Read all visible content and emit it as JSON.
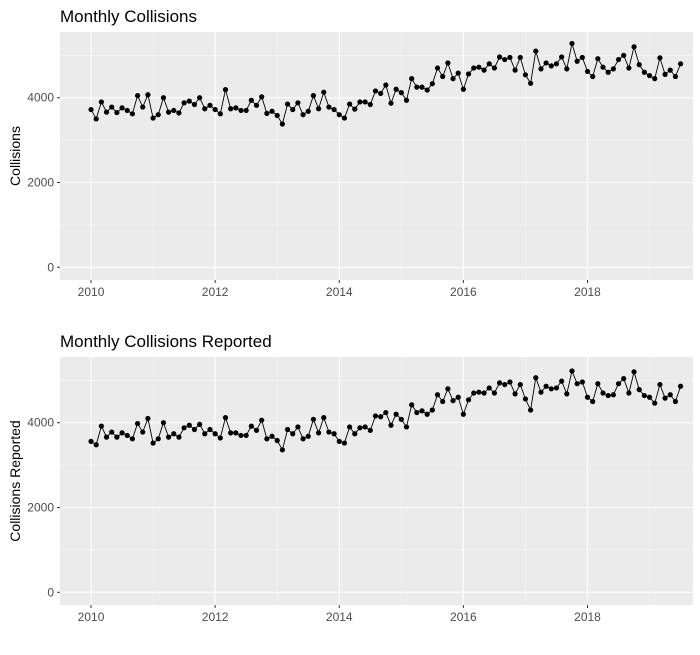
{
  "chart_data": [
    {
      "type": "line",
      "title": "Monthly Collisions",
      "xlabel": "",
      "ylabel": "Collisions",
      "xlim": [
        2009.5,
        2019.7
      ],
      "ylim": [
        -300,
        5550
      ],
      "x_ticks": [
        2010,
        2012,
        2014,
        2016,
        2018
      ],
      "x_tick_labels": [
        "2010",
        "2012",
        "2014",
        "2016",
        "2018"
      ],
      "y_ticks": [
        0,
        2000,
        4000
      ],
      "y_tick_labels": [
        "0",
        "2000",
        "4000"
      ],
      "grid": true,
      "legend": "none",
      "x_start": 2010,
      "x_step": 0.0833333,
      "series": [
        {
          "marker": "point",
          "values": [
            3720,
            3500,
            3900,
            3660,
            3780,
            3650,
            3760,
            3700,
            3620,
            4050,
            3780,
            4070,
            3520,
            3600,
            4000,
            3660,
            3700,
            3640,
            3880,
            3920,
            3840,
            4000,
            3740,
            3820,
            3720,
            3620,
            4190,
            3740,
            3760,
            3700,
            3700,
            3940,
            3820,
            4020,
            3630,
            3680,
            3580,
            3380,
            3850,
            3720,
            3880,
            3600,
            3680,
            4050,
            3740,
            4130,
            3780,
            3720,
            3600,
            3520,
            3850,
            3730,
            3900,
            3900,
            3840,
            4160,
            4100,
            4300,
            3870,
            4200,
            4120,
            3940,
            4450,
            4250,
            4250,
            4180,
            4330,
            4700,
            4500,
            4820,
            4450,
            4580,
            4200,
            4560,
            4700,
            4720,
            4650,
            4800,
            4700,
            4960,
            4900,
            4950,
            4650,
            4950,
            4540,
            4340,
            5100,
            4680,
            4820,
            4750,
            4800,
            4960,
            4680,
            5280,
            4860,
            4950,
            4620,
            4500,
            4920,
            4720,
            4600,
            4680,
            4900,
            5000,
            4700,
            5200,
            4780,
            4600,
            4520,
            4450,
            4940,
            4550,
            4650,
            4500,
            4800
          ]
        }
      ]
    },
    {
      "type": "line",
      "title": "Monthly Collisions Reported",
      "xlabel": "",
      "ylabel": "Collisions Reported",
      "xlim": [
        2009.5,
        2019.7
      ],
      "ylim": [
        -300,
        5550
      ],
      "x_ticks": [
        2010,
        2012,
        2014,
        2016,
        2018
      ],
      "x_tick_labels": [
        "2010",
        "2012",
        "2014",
        "2016",
        "2018"
      ],
      "y_ticks": [
        0,
        2000,
        4000
      ],
      "y_tick_labels": [
        "0",
        "2000",
        "4000"
      ],
      "grid": true,
      "legend": "none",
      "x_start": 2010,
      "x_step": 0.0833333,
      "series": [
        {
          "marker": "point",
          "values": [
            3560,
            3480,
            3920,
            3660,
            3780,
            3660,
            3760,
            3700,
            3620,
            3980,
            3780,
            4100,
            3520,
            3620,
            4000,
            3660,
            3740,
            3660,
            3880,
            3940,
            3840,
            3960,
            3740,
            3840,
            3740,
            3640,
            4120,
            3760,
            3760,
            3700,
            3700,
            3920,
            3820,
            4060,
            3620,
            3680,
            3580,
            3360,
            3840,
            3740,
            3900,
            3620,
            3680,
            4080,
            3760,
            4120,
            3780,
            3740,
            3560,
            3520,
            3900,
            3740,
            3880,
            3900,
            3820,
            4160,
            4140,
            4240,
            3940,
            4200,
            4080,
            3900,
            4420,
            4240,
            4280,
            4200,
            4300,
            4660,
            4500,
            4800,
            4520,
            4600,
            4200,
            4540,
            4700,
            4720,
            4700,
            4820,
            4700,
            4940,
            4900,
            4960,
            4680,
            4900,
            4560,
            4300,
            5060,
            4720,
            4860,
            4800,
            4820,
            4980,
            4680,
            5220,
            4920,
            4960,
            4600,
            4500,
            4920,
            4700,
            4640,
            4660,
            4920,
            5040,
            4700,
            5200,
            4780,
            4640,
            4600,
            4460,
            4900,
            4580,
            4660,
            4500,
            4860
          ]
        }
      ]
    }
  ]
}
